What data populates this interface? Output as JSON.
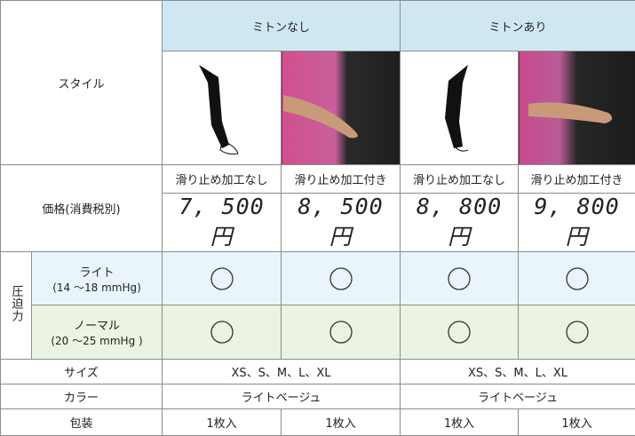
{
  "header": {
    "style_label": "スタイル",
    "groups": [
      "ミトンなし",
      "ミトンあり"
    ]
  },
  "price": {
    "label": "価格(消費税別)",
    "variants": [
      "滑り止め加工なし",
      "滑り止め加工付き",
      "滑り止め加工なし",
      "滑り止め加工付き"
    ],
    "prices": [
      "7, 500 円",
      "8, 500 円",
      "8, 800 円",
      "9, 800 円"
    ]
  },
  "pressure": {
    "label": "圧迫力",
    "levels": [
      {
        "name": "ライト",
        "range": "(14 ～18 mmHg)"
      },
      {
        "name": "ノーマル",
        "range": "(20 ～25 mmHg )"
      }
    ]
  },
  "size": {
    "label": "サイズ",
    "values": [
      "XS、S、M、L、XL",
      "XS、S、M、L、XL"
    ]
  },
  "color": {
    "label": "カラー",
    "values": [
      "ライトベージュ",
      "ライトベージュ"
    ]
  },
  "packaging": {
    "label": "包装",
    "values": [
      "1枚入",
      "1枚入",
      "1枚入",
      "1枚入"
    ]
  }
}
